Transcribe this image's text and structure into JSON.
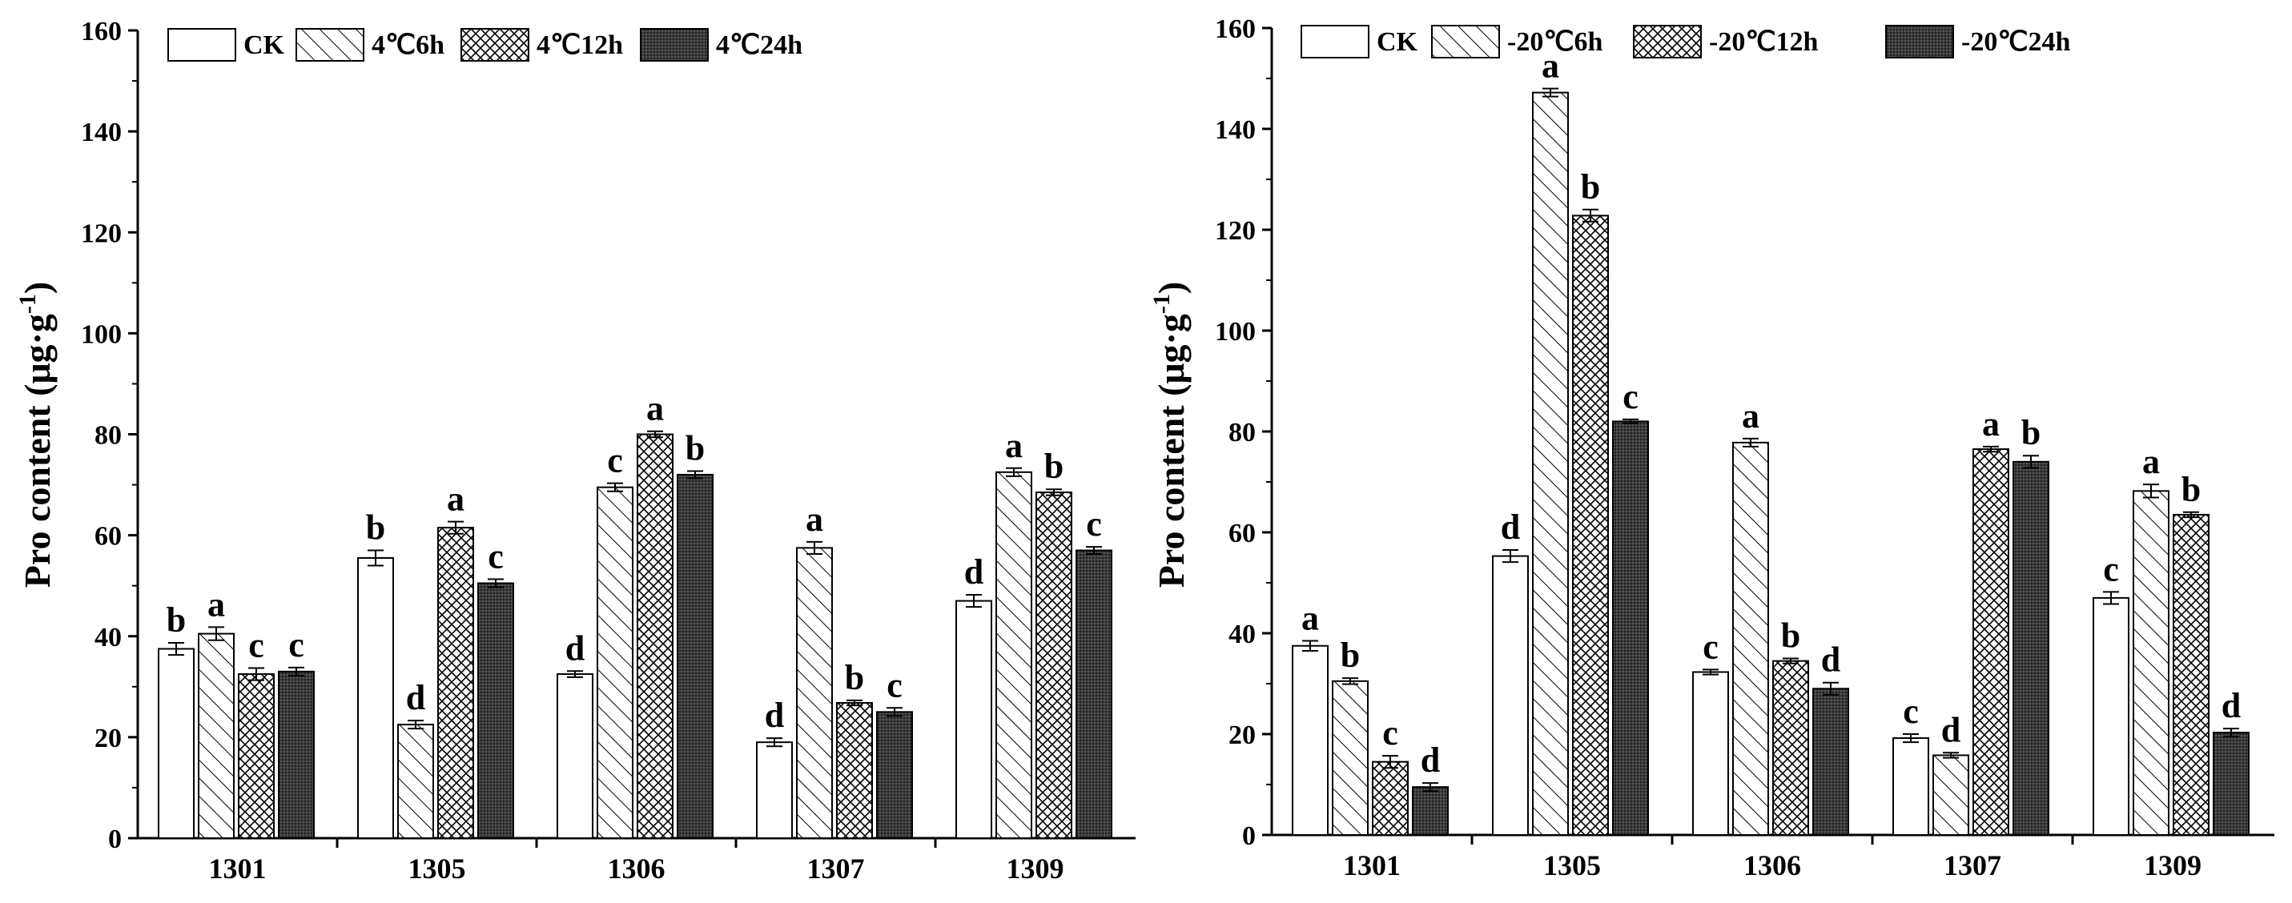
{
  "chart_data": [
    {
      "type": "bar",
      "title": "",
      "xlabel": "",
      "ylabel": "Pro content (μg·g",
      "ylabel_sup": "-1",
      "ylabel_close": ")",
      "ylim": [
        0,
        160
      ],
      "yticks": [
        "0",
        "20",
        "40",
        "60",
        "80",
        "100",
        "120",
        "140",
        "160"
      ],
      "ytick_values": [
        0,
        20,
        40,
        60,
        80,
        100,
        120,
        140,
        160
      ],
      "legend_position": "top-left",
      "categories": [
        "1301",
        "1305",
        "1306",
        "1307",
        "1309"
      ],
      "series": [
        {
          "name": "CK",
          "pattern": "empty",
          "values": [
            37.5,
            55.5,
            32.5,
            19.0,
            47.0
          ],
          "errors": [
            1.2,
            1.5,
            0.6,
            0.8,
            1.2
          ],
          "letters": [
            "b",
            "b",
            "d",
            "d",
            "d"
          ]
        },
        {
          "name": "4℃6h",
          "pattern": "hatch",
          "values": [
            40.5,
            22.5,
            69.5,
            57.5,
            72.5
          ],
          "errors": [
            1.3,
            0.8,
            0.8,
            1.2,
            0.8
          ],
          "letters": [
            "a",
            "d",
            "c",
            "a",
            "a"
          ]
        },
        {
          "name": "4℃12h",
          "pattern": "cross",
          "values": [
            32.5,
            61.5,
            80.0,
            26.8,
            68.5
          ],
          "errors": [
            1.2,
            1.2,
            0.6,
            0.5,
            0.6
          ],
          "letters": [
            "c",
            "a",
            "a",
            "b",
            "b"
          ]
        },
        {
          "name": "4℃24h",
          "pattern": "dark",
          "values": [
            33.0,
            50.5,
            72.0,
            25.0,
            57.0
          ],
          "errors": [
            0.8,
            0.8,
            0.7,
            0.8,
            0.7
          ],
          "letters": [
            "c",
            "c",
            "b",
            "c",
            "c"
          ]
        }
      ]
    },
    {
      "type": "bar",
      "title": "",
      "xlabel": "",
      "ylabel": "Pro content (μg·g",
      "ylabel_sup": "-1",
      "ylabel_close": ")",
      "ylim": [
        0,
        160
      ],
      "yticks": [
        "0",
        "20",
        "40",
        "60",
        "80",
        "100",
        "120",
        "140",
        "160"
      ],
      "ytick_values": [
        0,
        20,
        40,
        60,
        80,
        100,
        120,
        140,
        160
      ],
      "legend_position": "top-left",
      "categories": [
        "1301",
        "1305",
        "1306",
        "1307",
        "1309"
      ],
      "series": [
        {
          "name": "CK",
          "pattern": "empty",
          "values": [
            37.5,
            55.3,
            32.3,
            19.2,
            47.0
          ],
          "errors": [
            1.0,
            1.2,
            0.5,
            0.8,
            1.2
          ],
          "letters": [
            "a",
            "d",
            "c",
            "c",
            "c"
          ]
        },
        {
          "name": "-20℃6h",
          "pattern": "hatch",
          "values": [
            30.5,
            147.2,
            77.8,
            15.8,
            68.2
          ],
          "errors": [
            0.6,
            0.8,
            0.8,
            0.5,
            1.3
          ],
          "letters": [
            "b",
            "a",
            "a",
            "d",
            "a"
          ]
        },
        {
          "name": "-20℃12h",
          "pattern": "cross",
          "values": [
            14.5,
            122.8,
            34.5,
            76.5,
            63.5
          ],
          "errors": [
            1.2,
            1.2,
            0.5,
            0.5,
            0.5
          ],
          "letters": [
            "c",
            "b",
            "b",
            "a",
            "b"
          ]
        },
        {
          "name": "-20℃24h",
          "pattern": "dark",
          "values": [
            9.5,
            82.0,
            29.0,
            74.0,
            20.3
          ],
          "errors": [
            0.8,
            0.4,
            1.2,
            1.2,
            0.8
          ],
          "letters": [
            "d",
            "c",
            "d",
            "b",
            "d"
          ]
        }
      ]
    }
  ]
}
